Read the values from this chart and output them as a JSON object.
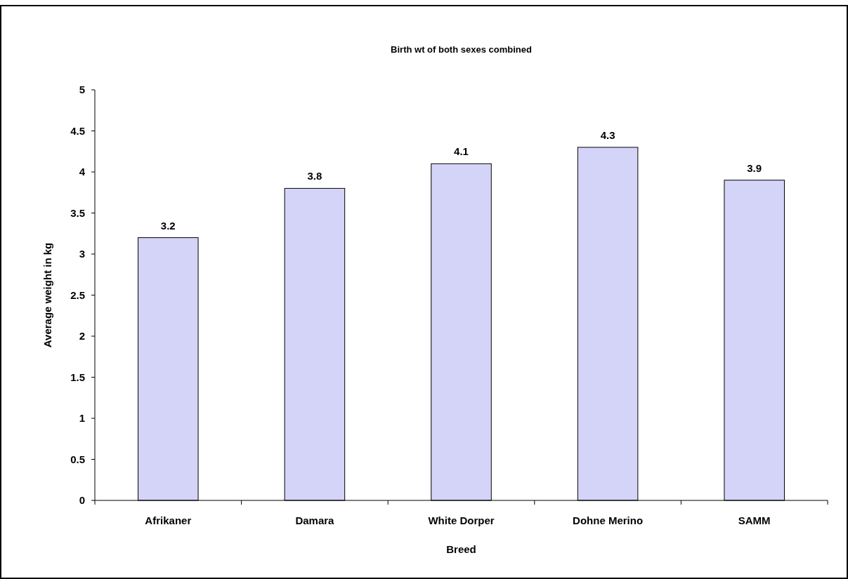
{
  "chart_data": {
    "type": "bar",
    "title": "Birth wt of both sexes combined",
    "xlabel": "Breed",
    "ylabel": "Average weight in kg",
    "categories": [
      "Afrikaner",
      "Damara",
      "White Dorper",
      "Dohne Merino",
      "SAMM"
    ],
    "values": [
      3.2,
      3.8,
      4.1,
      4.3,
      3.9
    ],
    "color": "#d4d4f8",
    "ylim": [
      0,
      5
    ],
    "yticks": [
      0,
      0.5,
      1,
      1.5,
      2,
      2.5,
      3,
      3.5,
      4,
      4.5,
      5
    ],
    "grid": false,
    "data_labels": true
  }
}
